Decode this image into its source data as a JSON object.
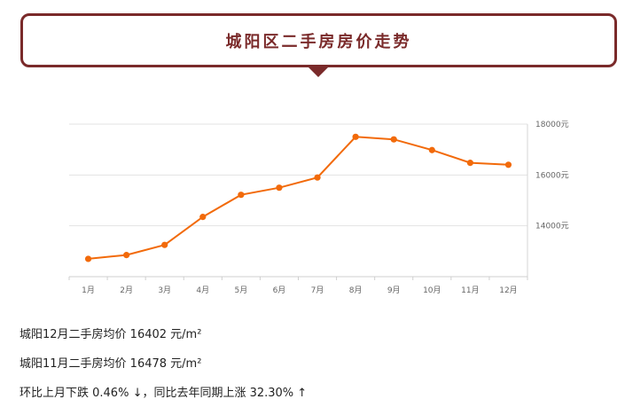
{
  "header": {
    "title": "城阳区二手房房价走势"
  },
  "colors": {
    "accent": "#7a2a2a",
    "series": "#f26a0a",
    "grid": "#e3e3e3"
  },
  "chart_data": {
    "type": "line",
    "title": "",
    "xlabel": "",
    "ylabel": "",
    "categories": [
      "1月",
      "2月",
      "3月",
      "4月",
      "5月",
      "6月",
      "7月",
      "8月",
      "9月",
      "10月",
      "11月",
      "12月"
    ],
    "series": [
      {
        "values": [
          12700,
          12850,
          13250,
          14350,
          15220,
          15500,
          15900,
          17500,
          17400,
          16980,
          16478,
          16402
        ]
      }
    ],
    "ylim": [
      12000,
      18000
    ],
    "yticks": [
      14000,
      16000,
      18000
    ],
    "ytick_labels": [
      "14000元",
      "16000元",
      "18000元"
    ],
    "y_axis_side": "right",
    "grid": true,
    "legend": "none"
  },
  "stats": {
    "line1": "城阳12月二手房均价 16402 元/m²",
    "line2": "城阳11月二手房均价 16478 元/m²",
    "line3": "环比上月下跌 0.46% ↓，同比去年同期上涨 32.30% ↑"
  }
}
